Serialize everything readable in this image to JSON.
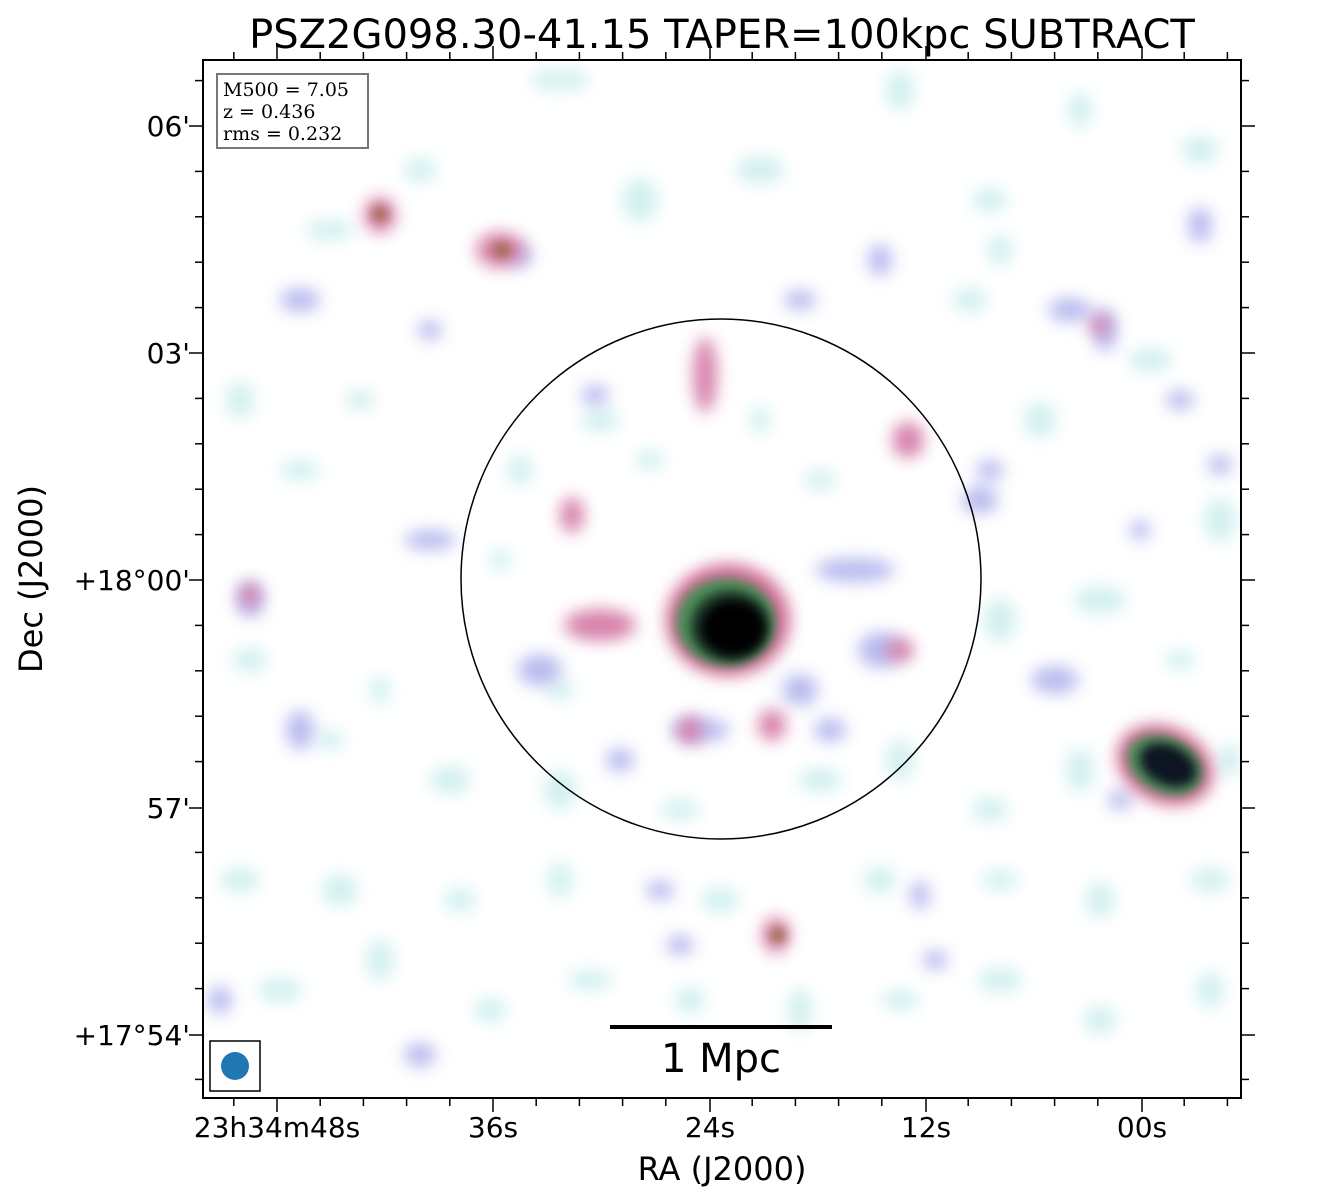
{
  "chart_data": {
    "type": "heatmap",
    "title": "PSZ2G098.30-41.15 TAPER=100kpc SUBTRACT",
    "xlabel": "RA (J2000)",
    "ylabel": "Dec (J2000)",
    "x_ticks": [
      "23h34m48s",
      "36s",
      "24s",
      "12s",
      "00s"
    ],
    "y_ticks": [
      "06'",
      "03'",
      "+18°00'",
      "57'",
      "+17°54'"
    ],
    "info_box": [
      "M500 = 7.05",
      "z = 0.436",
      "rms = 0.232"
    ],
    "scale_bar_label": "1 Mpc",
    "grid": false,
    "colormap": "cubehelix (white → cyan → lavender → pink → green → black)",
    "features": [
      {
        "kind": "compact source",
        "where": "cluster centre, south-west of pointing centre",
        "peak": "saturated"
      },
      {
        "kind": "compact source",
        "where": "far west, near 57'",
        "peak": "saturated"
      },
      {
        "kind": "extended emission",
        "where": "east of central source",
        "peak": "moderate"
      },
      {
        "kind": "compact source",
        "where": "north-east, near 04'",
        "peak": "moderate"
      },
      {
        "kind": "compact source",
        "where": "south, near 55'",
        "peak": "moderate"
      }
    ],
    "overlays": [
      "R500 circle centred on cluster",
      "beam ellipse (bottom-left)",
      "1 Mpc scale bar"
    ],
    "colors": {
      "beam": "#1f77b4",
      "circle": "#000000",
      "frame": "#000000"
    }
  }
}
